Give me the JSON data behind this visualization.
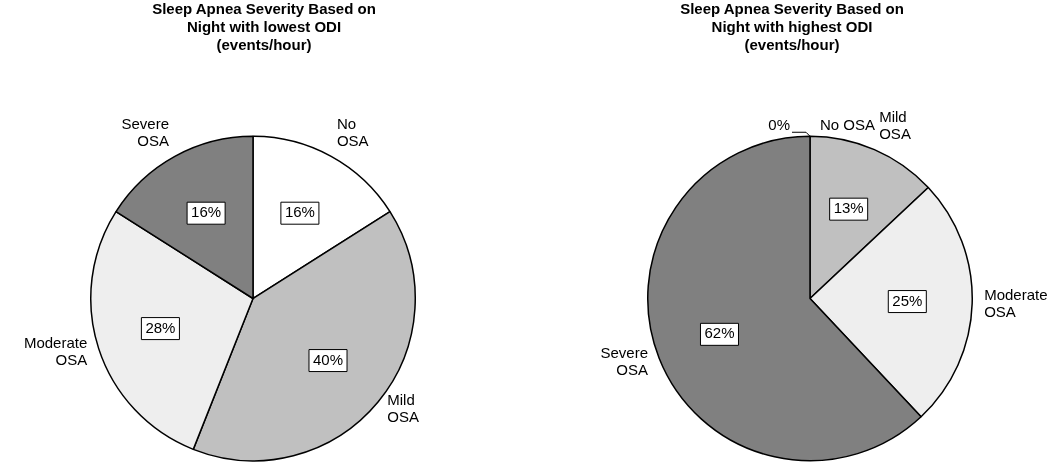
{
  "chart_data": [
    {
      "type": "pie",
      "title": "Sleep Apnea Severity Based on\nNight with lowest ODI\n(events/hour)",
      "categories": [
        "No\nOSA",
        "Mild\nOSA",
        "Moderate\nOSA",
        "Severe\nOSA"
      ],
      "values": [
        16,
        40,
        28,
        16
      ],
      "value_labels": [
        "16%",
        "40%",
        "28%",
        "16%"
      ],
      "colors": [
        "#ffffff",
        "#c0c0c0",
        "#eeeeee",
        "#808080"
      ]
    },
    {
      "type": "pie",
      "title": "Sleep Apnea Severity Based on\nNight with highest ODI\n(events/hour)",
      "categories": [
        "No OSA",
        "Mild\nOSA",
        "Moderate\nOSA",
        "Severe\nOSA"
      ],
      "values": [
        0,
        13,
        25,
        62
      ],
      "value_labels": [
        "0%",
        "13%",
        "25%",
        "62%"
      ],
      "colors": [
        "#ffffff",
        "#c0c0c0",
        "#eeeeee",
        "#808080"
      ]
    }
  ]
}
